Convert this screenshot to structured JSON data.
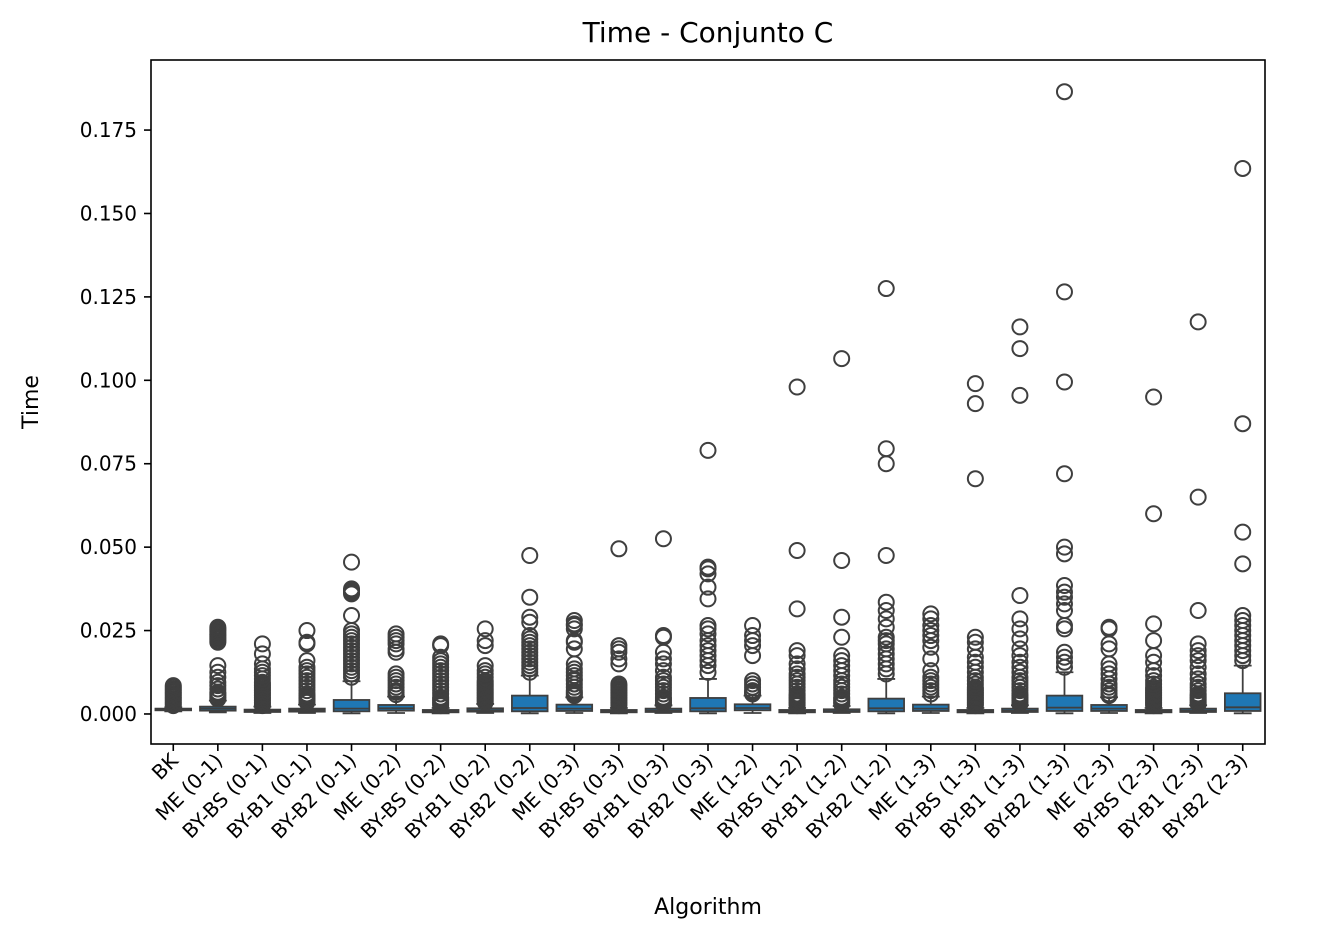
{
  "chart_data": {
    "type": "box",
    "title": "Time - Conjunto C",
    "xlabel": "Algorithm",
    "ylabel": "Time",
    "ylim": [
      -0.009,
      0.196
    ],
    "yticks": [
      0.0,
      0.025,
      0.05,
      0.075,
      0.1,
      0.125,
      0.15,
      0.175
    ],
    "ytick_labels": [
      "0.000",
      "0.025",
      "0.050",
      "0.075",
      "0.100",
      "0.125",
      "0.150",
      "0.175"
    ],
    "grid": false,
    "box_color": "#1f77b4",
    "line_color": "#3f3f3f",
    "categories": [
      "BK",
      "ME (0-1)",
      "BY-BS (0-1)",
      "BY-B1 (0-1)",
      "BY-B2 (0-1)",
      "ME (0-2)",
      "BY-BS (0-2)",
      "BY-B1 (0-2)",
      "BY-B2 (0-2)",
      "ME (0-3)",
      "BY-BS (0-3)",
      "BY-B1 (0-3)",
      "BY-B2 (0-3)",
      "ME (1-2)",
      "BY-BS (1-2)",
      "BY-B1 (1-2)",
      "BY-B2 (1-2)",
      "ME (1-3)",
      "BY-BS (1-3)",
      "BY-B1 (1-3)",
      "BY-B2 (1-3)",
      "ME (2-3)",
      "BY-BS (2-3)",
      "BY-B1 (2-3)",
      "BY-B2 (2-3)"
    ],
    "boxes": [
      {
        "whislo": 0.0008,
        "q1": 0.0011,
        "med": 0.0013,
        "q3": 0.0016,
        "whishi": 0.002,
        "fliers": [
          0.0025,
          0.003,
          0.0035,
          0.004,
          0.0045,
          0.005,
          0.0055,
          0.006,
          0.0065,
          0.007,
          0.0075,
          0.008,
          0.0085
        ]
      },
      {
        "whislo": 0.0005,
        "q1": 0.001,
        "med": 0.0016,
        "q3": 0.0022,
        "whishi": 0.004,
        "fliers": [
          0.0045,
          0.005,
          0.0055,
          0.006,
          0.0065,
          0.0075,
          0.0085,
          0.0095,
          0.011,
          0.0125,
          0.0145,
          0.0215,
          0.022,
          0.0225,
          0.023,
          0.0235,
          0.024,
          0.0245,
          0.025,
          0.0255,
          0.026
        ]
      },
      {
        "whislo": 0.0003,
        "q1": 0.0006,
        "med": 0.0009,
        "q3": 0.0013,
        "whishi": 0.0022,
        "fliers": [
          0.0025,
          0.003,
          0.0035,
          0.004,
          0.0045,
          0.005,
          0.0055,
          0.006,
          0.0065,
          0.007,
          0.0075,
          0.008,
          0.0085,
          0.009,
          0.0095,
          0.0105,
          0.0115,
          0.0125,
          0.0135,
          0.015,
          0.018,
          0.021
        ]
      },
      {
        "whislo": 0.0003,
        "q1": 0.0007,
        "med": 0.0011,
        "q3": 0.0016,
        "whishi": 0.0028,
        "fliers": [
          0.0035,
          0.004,
          0.0045,
          0.005,
          0.0055,
          0.006,
          0.007,
          0.008,
          0.009,
          0.01,
          0.011,
          0.012,
          0.013,
          0.014,
          0.016,
          0.021,
          0.0215,
          0.025
        ]
      },
      {
        "whislo": 0.0002,
        "q1": 0.0008,
        "med": 0.0016,
        "q3": 0.0042,
        "whishi": 0.0098,
        "fliers": [
          0.011,
          0.012,
          0.013,
          0.014,
          0.015,
          0.016,
          0.017,
          0.018,
          0.019,
          0.02,
          0.021,
          0.022,
          0.023,
          0.024,
          0.025,
          0.0295,
          0.036,
          0.0365,
          0.037,
          0.0375,
          0.0455
        ]
      },
      {
        "whislo": 0.0003,
        "q1": 0.001,
        "med": 0.0017,
        "q3": 0.0027,
        "whishi": 0.0052,
        "fliers": [
          0.0058,
          0.0065,
          0.007,
          0.008,
          0.009,
          0.01,
          0.011,
          0.012,
          0.0185,
          0.0195,
          0.021,
          0.022,
          0.023,
          0.024
        ]
      },
      {
        "whislo": 0.0002,
        "q1": 0.0005,
        "med": 0.0008,
        "q3": 0.0012,
        "whishi": 0.0018,
        "fliers": [
          0.0025,
          0.003,
          0.0035,
          0.004,
          0.0045,
          0.005,
          0.006,
          0.007,
          0.008,
          0.009,
          0.01,
          0.011,
          0.012,
          0.013,
          0.014,
          0.015,
          0.016,
          0.017,
          0.0205,
          0.021
        ]
      },
      {
        "whislo": 0.0003,
        "q1": 0.0007,
        "med": 0.0011,
        "q3": 0.0017,
        "whishi": 0.003,
        "fliers": [
          0.0035,
          0.004,
          0.0045,
          0.005,
          0.0055,
          0.006,
          0.0065,
          0.007,
          0.0075,
          0.008,
          0.0085,
          0.009,
          0.0095,
          0.01,
          0.011,
          0.012,
          0.013,
          0.0145,
          0.0205,
          0.022,
          0.0255
        ]
      },
      {
        "whislo": 0.0002,
        "q1": 0.0008,
        "med": 0.0018,
        "q3": 0.0055,
        "whishi": 0.0115,
        "fliers": [
          0.0125,
          0.0135,
          0.0145,
          0.0155,
          0.0165,
          0.0175,
          0.0185,
          0.0195,
          0.0205,
          0.0215,
          0.0225,
          0.0235,
          0.0275,
          0.029,
          0.035,
          0.0475
        ]
      },
      {
        "whislo": 0.0003,
        "q1": 0.0009,
        "med": 0.0016,
        "q3": 0.0028,
        "whishi": 0.005,
        "fliers": [
          0.0055,
          0.006,
          0.0065,
          0.007,
          0.008,
          0.009,
          0.01,
          0.0105,
          0.0115,
          0.0125,
          0.0135,
          0.015,
          0.0195,
          0.0215,
          0.022,
          0.0255,
          0.0265,
          0.027,
          0.028
        ]
      },
      {
        "whislo": 0.0002,
        "q1": 0.0005,
        "med": 0.0008,
        "q3": 0.0012,
        "whishi": 0.0018,
        "fliers": [
          0.0025,
          0.003,
          0.0035,
          0.004,
          0.0045,
          0.005,
          0.0055,
          0.006,
          0.0065,
          0.007,
          0.0075,
          0.008,
          0.0085,
          0.009,
          0.015,
          0.0165,
          0.0185,
          0.0195,
          0.0205,
          0.0495
        ]
      },
      {
        "whislo": 0.0003,
        "q1": 0.0006,
        "med": 0.001,
        "q3": 0.0016,
        "whishi": 0.0026,
        "fliers": [
          0.003,
          0.0035,
          0.004,
          0.0045,
          0.005,
          0.006,
          0.007,
          0.008,
          0.009,
          0.01,
          0.011,
          0.013,
          0.015,
          0.0165,
          0.0185,
          0.023,
          0.0235,
          0.0525
        ]
      },
      {
        "whislo": 0.0002,
        "q1": 0.0008,
        "med": 0.0017,
        "q3": 0.0048,
        "whishi": 0.0105,
        "fliers": [
          0.0125,
          0.0145,
          0.016,
          0.0175,
          0.019,
          0.0205,
          0.022,
          0.024,
          0.0255,
          0.0265,
          0.0345,
          0.038,
          0.042,
          0.0435,
          0.044,
          0.079
        ]
      },
      {
        "whislo": 0.0003,
        "q1": 0.0011,
        "med": 0.0018,
        "q3": 0.0029,
        "whishi": 0.0055,
        "fliers": [
          0.006,
          0.0065,
          0.007,
          0.008,
          0.009,
          0.01,
          0.0175,
          0.0205,
          0.022,
          0.0235,
          0.0265
        ]
      },
      {
        "whislo": 0.0002,
        "q1": 0.0005,
        "med": 0.0008,
        "q3": 0.0012,
        "whishi": 0.0018,
        "fliers": [
          0.0025,
          0.003,
          0.0035,
          0.004,
          0.0045,
          0.005,
          0.0055,
          0.006,
          0.007,
          0.008,
          0.009,
          0.01,
          0.011,
          0.012,
          0.0135,
          0.015,
          0.0175,
          0.019,
          0.0315,
          0.049,
          0.098
        ]
      },
      {
        "whislo": 0.0003,
        "q1": 0.0006,
        "med": 0.0009,
        "q3": 0.0014,
        "whishi": 0.0024,
        "fliers": [
          0.003,
          0.0035,
          0.004,
          0.0045,
          0.005,
          0.006,
          0.007,
          0.008,
          0.009,
          0.01,
          0.0115,
          0.013,
          0.0145,
          0.016,
          0.0175,
          0.023,
          0.029,
          0.046,
          0.1065
        ]
      },
      {
        "whislo": 0.0002,
        "q1": 0.0008,
        "med": 0.0017,
        "q3": 0.0046,
        "whishi": 0.0105,
        "fliers": [
          0.012,
          0.0135,
          0.015,
          0.0165,
          0.018,
          0.0195,
          0.021,
          0.022,
          0.023,
          0.026,
          0.0285,
          0.031,
          0.0335,
          0.0475,
          0.075,
          0.0795,
          0.1275
        ]
      },
      {
        "whislo": 0.0003,
        "q1": 0.0009,
        "med": 0.0016,
        "q3": 0.0028,
        "whishi": 0.0052,
        "fliers": [
          0.006,
          0.007,
          0.008,
          0.009,
          0.01,
          0.011,
          0.013,
          0.0165,
          0.02,
          0.022,
          0.0235,
          0.025,
          0.0265,
          0.0285,
          0.03
        ]
      },
      {
        "whislo": 0.0002,
        "q1": 0.0005,
        "med": 0.0008,
        "q3": 0.0012,
        "whishi": 0.0018,
        "fliers": [
          0.0025,
          0.003,
          0.0035,
          0.004,
          0.0045,
          0.005,
          0.0055,
          0.006,
          0.0065,
          0.007,
          0.0075,
          0.008,
          0.009,
          0.01,
          0.011,
          0.0125,
          0.014,
          0.0155,
          0.017,
          0.0195,
          0.0215,
          0.023,
          0.0705,
          0.093,
          0.099
        ]
      },
      {
        "whislo": 0.0003,
        "q1": 0.0006,
        "med": 0.001,
        "q3": 0.0016,
        "whishi": 0.0026,
        "fliers": [
          0.003,
          0.0035,
          0.004,
          0.0045,
          0.005,
          0.0055,
          0.006,
          0.007,
          0.008,
          0.009,
          0.01,
          0.011,
          0.0125,
          0.014,
          0.0155,
          0.0175,
          0.0195,
          0.0225,
          0.0255,
          0.0285,
          0.0355,
          0.0955,
          0.1095,
          0.116
        ]
      },
      {
        "whislo": 0.0002,
        "q1": 0.0009,
        "med": 0.0019,
        "q3": 0.0055,
        "whishi": 0.0125,
        "fliers": [
          0.014,
          0.0155,
          0.017,
          0.0185,
          0.0255,
          0.0265,
          0.031,
          0.033,
          0.035,
          0.0365,
          0.0385,
          0.048,
          0.05,
          0.072,
          0.0995,
          0.1265,
          0.1865
        ]
      },
      {
        "whislo": 0.0003,
        "q1": 0.0009,
        "med": 0.0016,
        "q3": 0.0027,
        "whishi": 0.005,
        "fliers": [
          0.0055,
          0.006,
          0.007,
          0.008,
          0.009,
          0.0105,
          0.012,
          0.0135,
          0.015,
          0.0195,
          0.021,
          0.0255,
          0.026
        ]
      },
      {
        "whislo": 0.0002,
        "q1": 0.0005,
        "med": 0.0008,
        "q3": 0.0012,
        "whishi": 0.0018,
        "fliers": [
          0.0025,
          0.003,
          0.0035,
          0.004,
          0.0045,
          0.005,
          0.0055,
          0.006,
          0.0065,
          0.007,
          0.0075,
          0.008,
          0.009,
          0.01,
          0.0115,
          0.013,
          0.0155,
          0.0175,
          0.022,
          0.027,
          0.06,
          0.095
        ]
      },
      {
        "whislo": 0.0003,
        "q1": 0.0006,
        "med": 0.001,
        "q3": 0.0016,
        "whishi": 0.0026,
        "fliers": [
          0.003,
          0.0035,
          0.004,
          0.0045,
          0.005,
          0.0055,
          0.006,
          0.007,
          0.008,
          0.009,
          0.0105,
          0.012,
          0.014,
          0.016,
          0.0175,
          0.019,
          0.021,
          0.031,
          0.065,
          0.1175
        ]
      },
      {
        "whislo": 0.0002,
        "q1": 0.0009,
        "med": 0.002,
        "q3": 0.0062,
        "whishi": 0.0145,
        "fliers": [
          0.016,
          0.0175,
          0.019,
          0.0205,
          0.022,
          0.0235,
          0.025,
          0.0265,
          0.028,
          0.0295,
          0.045,
          0.0545,
          0.087,
          0.1635
        ]
      }
    ]
  }
}
